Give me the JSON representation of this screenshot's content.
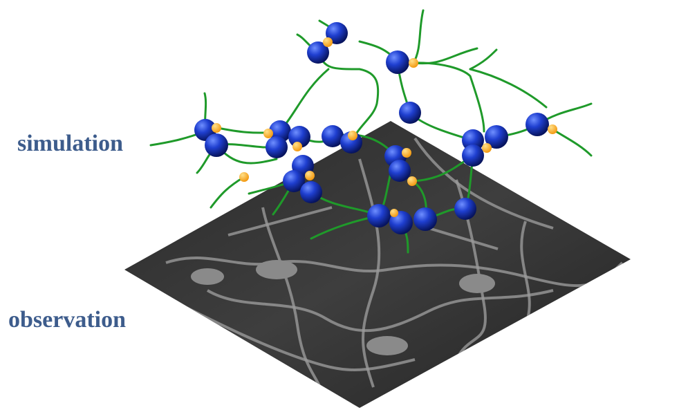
{
  "labels": {
    "simulation": "simulation",
    "observation": "observation"
  }
}
